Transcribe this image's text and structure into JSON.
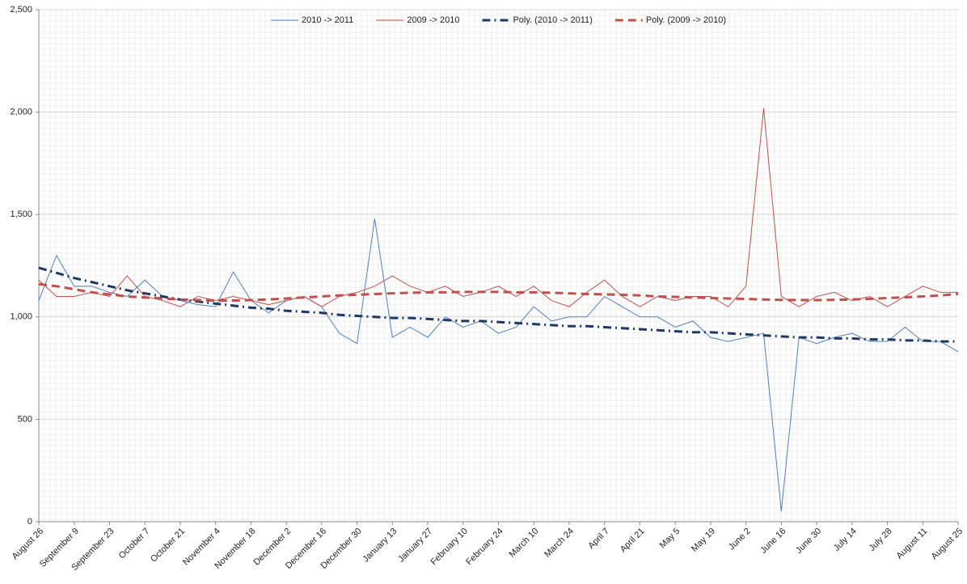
{
  "chart_data": {
    "type": "line",
    "categories": [
      "August 26",
      null,
      "September 9",
      null,
      "September 23",
      null,
      "October 7",
      null,
      "October 21",
      null,
      "November 4",
      null,
      "November 18",
      null,
      "December 2",
      null,
      "December 16",
      null,
      "December 30",
      null,
      "January 13",
      null,
      "January 27",
      null,
      "February 10",
      null,
      "February 24",
      null,
      "March 10",
      null,
      "March 24",
      null,
      "April 7",
      null,
      "April 21",
      null,
      "May 5",
      null,
      "May 19",
      null,
      "June 2",
      null,
      "June 16",
      null,
      "June 30",
      null,
      "July 14",
      null,
      "July 28",
      null,
      "August 11",
      null,
      "August 25"
    ],
    "series": [
      {
        "name": "2010 -> 2011",
        "color": "#4f81bd",
        "style": "solid",
        "values": [
          1080,
          1300,
          1150,
          1150,
          1120,
          1100,
          1180,
          1100,
          1080,
          1060,
          1050,
          1220,
          1080,
          1020,
          1080,
          1100,
          1050,
          920,
          870,
          1480,
          900,
          950,
          900,
          1000,
          950,
          980,
          920,
          950,
          1050,
          980,
          1000,
          1000,
          1100,
          1050,
          1000,
          1000,
          950,
          980,
          900,
          880,
          900,
          920,
          50,
          900,
          870,
          900,
          920,
          880,
          880,
          950,
          880,
          880,
          830
        ]
      },
      {
        "name": "2009 -> 2010",
        "color": "#c0504d",
        "style": "solid",
        "values": [
          1180,
          1100,
          1100,
          1120,
          1100,
          1200,
          1100,
          1080,
          1050,
          1100,
          1080,
          1100,
          1080,
          1060,
          1080,
          1100,
          1050,
          1100,
          1120,
          1150,
          1200,
          1150,
          1120,
          1150,
          1100,
          1120,
          1150,
          1100,
          1150,
          1080,
          1050,
          1120,
          1180,
          1100,
          1050,
          1100,
          1080,
          1100,
          1100,
          1050,
          1150,
          2020,
          1100,
          1050,
          1100,
          1120,
          1080,
          1100,
          1050,
          1100,
          1150,
          1120,
          1120
        ]
      },
      {
        "name": "Poly. (2010 -> 2011)",
        "color": "#1f3864",
        "style": "dashdot",
        "values": [
          1240,
          1215,
          1190,
          1170,
          1150,
          1130,
          1115,
          1100,
          1085,
          1075,
          1065,
          1055,
          1045,
          1040,
          1030,
          1025,
          1020,
          1010,
          1005,
          1000,
          995,
          995,
          990,
          985,
          980,
          980,
          975,
          970,
          965,
          960,
          955,
          955,
          950,
          945,
          940,
          935,
          930,
          925,
          925,
          920,
          915,
          910,
          905,
          900,
          900,
          895,
          895,
          890,
          890,
          885,
          885,
          880,
          880
        ]
      },
      {
        "name": "Poly. (2009 -> 2010)",
        "color": "#c0504d",
        "style": "dash",
        "values": [
          1160,
          1150,
          1135,
          1120,
          1110,
          1100,
          1095,
          1090,
          1085,
          1082,
          1080,
          1080,
          1082,
          1085,
          1090,
          1095,
          1100,
          1105,
          1108,
          1112,
          1115,
          1118,
          1120,
          1120,
          1122,
          1122,
          1122,
          1120,
          1120,
          1118,
          1115,
          1112,
          1110,
          1108,
          1105,
          1100,
          1098,
          1095,
          1092,
          1090,
          1088,
          1085,
          1083,
          1082,
          1082,
          1083,
          1085,
          1088,
          1092,
          1096,
          1100,
          1105,
          1112
        ]
      }
    ],
    "ylim": [
      0,
      2500
    ],
    "yticks": [
      0,
      500,
      {
        "value": 1000,
        "label": "1,000"
      },
      {
        "value": 1500,
        "label": "1,500"
      },
      {
        "value": 2000,
        "label": "2,000"
      },
      {
        "value": 2500,
        "label": "2,500"
      }
    ],
    "grid": true,
    "legend": "top"
  }
}
